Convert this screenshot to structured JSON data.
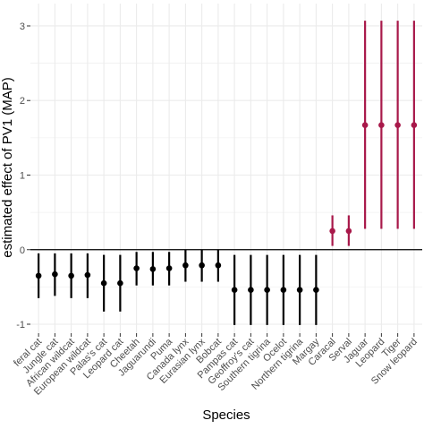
{
  "chart_data": {
    "type": "scatter",
    "subtype": "point-range",
    "title": "",
    "xlabel": "Species",
    "ylabel": "estimated effect of PV1 (MAP)",
    "ylim": [
      -1.12,
      3.3
    ],
    "yticks": [
      -1,
      0,
      1,
      2,
      3
    ],
    "ytick_labels": [
      "-1",
      "0",
      "1",
      "2",
      "3"
    ],
    "grid": true,
    "reference_line": 0,
    "colors": {
      "negative": "#000000",
      "positive": "#a8194a",
      "grid": "#ebebeb",
      "axis_text": "#4d4d4d"
    },
    "categories": [
      "feral cat",
      "Jungle cat",
      "African wildcat",
      "European wildcat",
      "Palas's cat",
      "Leopard cat",
      "Cheetah",
      "Jaguarundi",
      "Puma",
      "Canada lynx",
      "Eurasian lynx",
      "Bobcat",
      "Pampas cat",
      "Geoffroy's cat",
      "Southern tigrina",
      "Ocelot",
      "Northern tigrina",
      "Margay",
      "Caracal",
      "Serval",
      "Jaguar",
      "Leopard",
      "Tiger",
      "Snow leopard"
    ],
    "estimate": [
      -0.35,
      -0.33,
      -0.35,
      -0.34,
      -0.45,
      -0.45,
      -0.25,
      -0.26,
      -0.25,
      -0.21,
      -0.21,
      -0.21,
      -0.54,
      -0.54,
      -0.54,
      -0.54,
      -0.54,
      -0.54,
      0.25,
      0.25,
      1.67,
      1.67,
      1.67,
      1.67
    ],
    "lower": [
      -0.65,
      -0.62,
      -0.65,
      -0.65,
      -0.83,
      -0.83,
      -0.48,
      -0.48,
      -0.48,
      -0.43,
      -0.43,
      -0.43,
      -1.01,
      -1.01,
      -1.01,
      -1.01,
      -1.01,
      -1.01,
      0.05,
      0.05,
      0.28,
      0.28,
      0.28,
      0.28
    ],
    "upper": [
      -0.05,
      -0.05,
      -0.05,
      -0.05,
      -0.07,
      -0.07,
      -0.03,
      -0.03,
      -0.03,
      0.0,
      0.0,
      0.0,
      -0.07,
      -0.07,
      -0.07,
      -0.07,
      -0.07,
      -0.07,
      0.46,
      0.46,
      3.07,
      3.07,
      3.07,
      3.07
    ],
    "group": [
      "negative",
      "negative",
      "negative",
      "negative",
      "negative",
      "negative",
      "negative",
      "negative",
      "negative",
      "negative",
      "negative",
      "negative",
      "negative",
      "negative",
      "negative",
      "negative",
      "negative",
      "negative",
      "positive",
      "positive",
      "positive",
      "positive",
      "positive",
      "positive"
    ]
  }
}
